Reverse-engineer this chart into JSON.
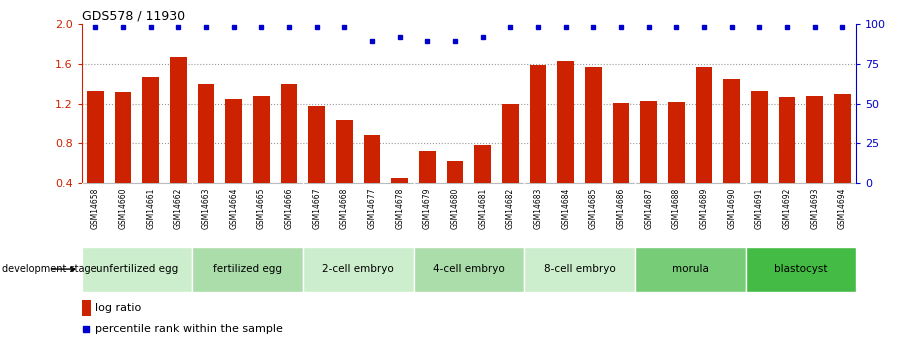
{
  "title": "GDS578 / 11930",
  "samples": [
    "GSM14658",
    "GSM14660",
    "GSM14661",
    "GSM14662",
    "GSM14663",
    "GSM14664",
    "GSM14665",
    "GSM14666",
    "GSM14667",
    "GSM14668",
    "GSM14677",
    "GSM14678",
    "GSM14679",
    "GSM14680",
    "GSM14681",
    "GSM14682",
    "GSM14683",
    "GSM14684",
    "GSM14685",
    "GSM14686",
    "GSM14687",
    "GSM14688",
    "GSM14689",
    "GSM14690",
    "GSM14691",
    "GSM14692",
    "GSM14693",
    "GSM14694"
  ],
  "log_ratio": [
    1.33,
    1.32,
    1.47,
    1.67,
    1.4,
    1.25,
    1.28,
    1.4,
    1.17,
    1.03,
    0.88,
    0.45,
    0.72,
    0.62,
    0.78,
    1.2,
    1.59,
    1.63,
    1.57,
    1.21,
    1.23,
    1.22,
    1.57,
    1.45,
    1.33,
    1.27,
    1.28,
    1.3
  ],
  "pct_raw": [
    1.97,
    1.97,
    1.97,
    1.97,
    1.97,
    1.97,
    1.97,
    1.97,
    1.97,
    1.97,
    1.83,
    1.87,
    1.83,
    1.83,
    1.87,
    1.97,
    1.97,
    1.97,
    1.97,
    1.97,
    1.97,
    1.97,
    1.97,
    1.97,
    1.97,
    1.97,
    1.97,
    1.97
  ],
  "bar_color": "#cc2200",
  "dot_color": "#0000cc",
  "ylim_left": [
    0.4,
    2.0
  ],
  "ylim_right": [
    0,
    100
  ],
  "yticks_left": [
    0.4,
    0.8,
    1.2,
    1.6,
    2.0
  ],
  "yticks_right": [
    0,
    25,
    50,
    75,
    100
  ],
  "stages": [
    {
      "label": "unfertilized egg",
      "start": 0,
      "end": 4,
      "color": "#cceecc"
    },
    {
      "label": "fertilized egg",
      "start": 4,
      "end": 8,
      "color": "#aaddaa"
    },
    {
      "label": "2-cell embryo",
      "start": 8,
      "end": 12,
      "color": "#cceecc"
    },
    {
      "label": "4-cell embryo",
      "start": 12,
      "end": 16,
      "color": "#aaddaa"
    },
    {
      "label": "8-cell embryo",
      "start": 16,
      "end": 20,
      "color": "#cceecc"
    },
    {
      "label": "morula",
      "start": 20,
      "end": 24,
      "color": "#77cc77"
    },
    {
      "label": "blastocyst",
      "start": 24,
      "end": 28,
      "color": "#44bb44"
    }
  ],
  "legend_bar_label": "log ratio",
  "legend_dot_label": "percentile rank within the sample",
  "dev_stage_label": "development stage",
  "background_color": "#ffffff",
  "grid_color": "#999999",
  "sample_bg_color": "#e0e0e0",
  "left_axis_color": "#cc2200",
  "right_axis_color": "#0000cc"
}
